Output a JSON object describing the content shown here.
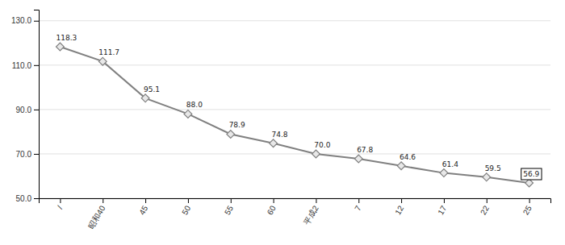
{
  "chart_data": {
    "type": "line",
    "categories": [
      "/",
      "昭和40",
      "45",
      "50",
      "55",
      "60",
      "平成2",
      "7",
      "12",
      "17",
      "22",
      "25"
    ],
    "values": [
      118.3,
      111.7,
      95.1,
      88.0,
      78.9,
      74.8,
      70.0,
      67.8,
      64.6,
      61.4,
      59.5,
      56.9
    ],
    "value_labels": [
      "118.3",
      "111.7",
      "95.1",
      "88.0",
      "78.9",
      "74.8",
      "70.0",
      "67.8",
      "64.6",
      "61.4",
      "59.5",
      "56.9"
    ],
    "color": "#808080",
    "marker": "diamond",
    "ylim": [
      50.0,
      135.0
    ],
    "yticks": [
      {
        "value": 50.0,
        "label": "50.0"
      },
      {
        "value": 70.0,
        "label": "70.0"
      },
      {
        "value": 90.0,
        "label": "90.0"
      },
      {
        "value": 110.0,
        "label": "110.0"
      },
      {
        "value": 130.0,
        "label": "130.0"
      }
    ],
    "grid": true,
    "data_labels": true
  }
}
